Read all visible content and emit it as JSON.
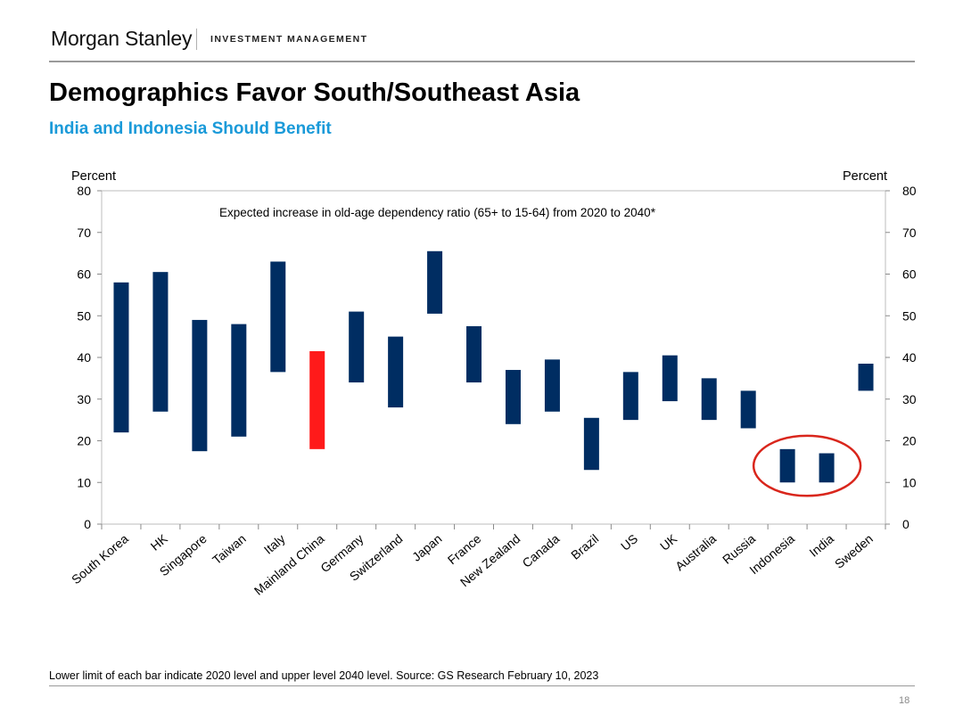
{
  "header": {
    "logo": "Morgan Stanley",
    "division": "INVESTMENT MANAGEMENT"
  },
  "title": "Demographics Favor South/Southeast Asia",
  "subtitle": "India and Indonesia Should Benefit",
  "chart_data": {
    "type": "bar",
    "subtype": "floating-range",
    "annotation": "Expected increase in old-age dependency ratio (65+ to 15-64) from 2020 to 2040*",
    "ylabel_left": "Percent",
    "ylabel_right": "Percent",
    "ylim": [
      0,
      80
    ],
    "yticks": [
      0,
      10,
      20,
      30,
      40,
      50,
      60,
      70,
      80
    ],
    "grid": false,
    "categories": [
      "South Korea",
      "HK",
      "Singapore",
      "Taiwan",
      "Italy",
      "Mainland China",
      "Germany",
      "Switzerland",
      "Japan",
      "France",
      "New Zealand",
      "Canada",
      "Brazil",
      "US",
      "UK",
      "Australia",
      "Russia",
      "Indonesia",
      "India",
      "Sweden"
    ],
    "series": [
      {
        "low_2020": [
          22,
          27,
          17.5,
          21,
          36.5,
          18,
          34,
          28,
          50.5,
          34,
          24,
          27,
          13,
          25,
          29.5,
          25,
          23,
          10,
          10,
          32
        ]
      },
      {
        "high_2040": [
          58,
          60.5,
          49,
          48,
          63,
          41.5,
          51,
          45,
          65.5,
          47.5,
          37,
          39.5,
          25.5,
          36.5,
          40.5,
          35,
          32,
          18,
          17,
          38.5
        ]
      }
    ],
    "colors": {
      "default": "#002d62",
      "highlight": "#ff1a1a",
      "circle": "#d9261c"
    },
    "highlight_categories": [
      "Mainland China"
    ],
    "circled_categories": [
      "Indonesia",
      "India"
    ]
  },
  "footnote": "Lower limit of each bar indicate 2020 level and upper level 2040 level. Source: GS Research February 10, 2023",
  "page_number": "18"
}
